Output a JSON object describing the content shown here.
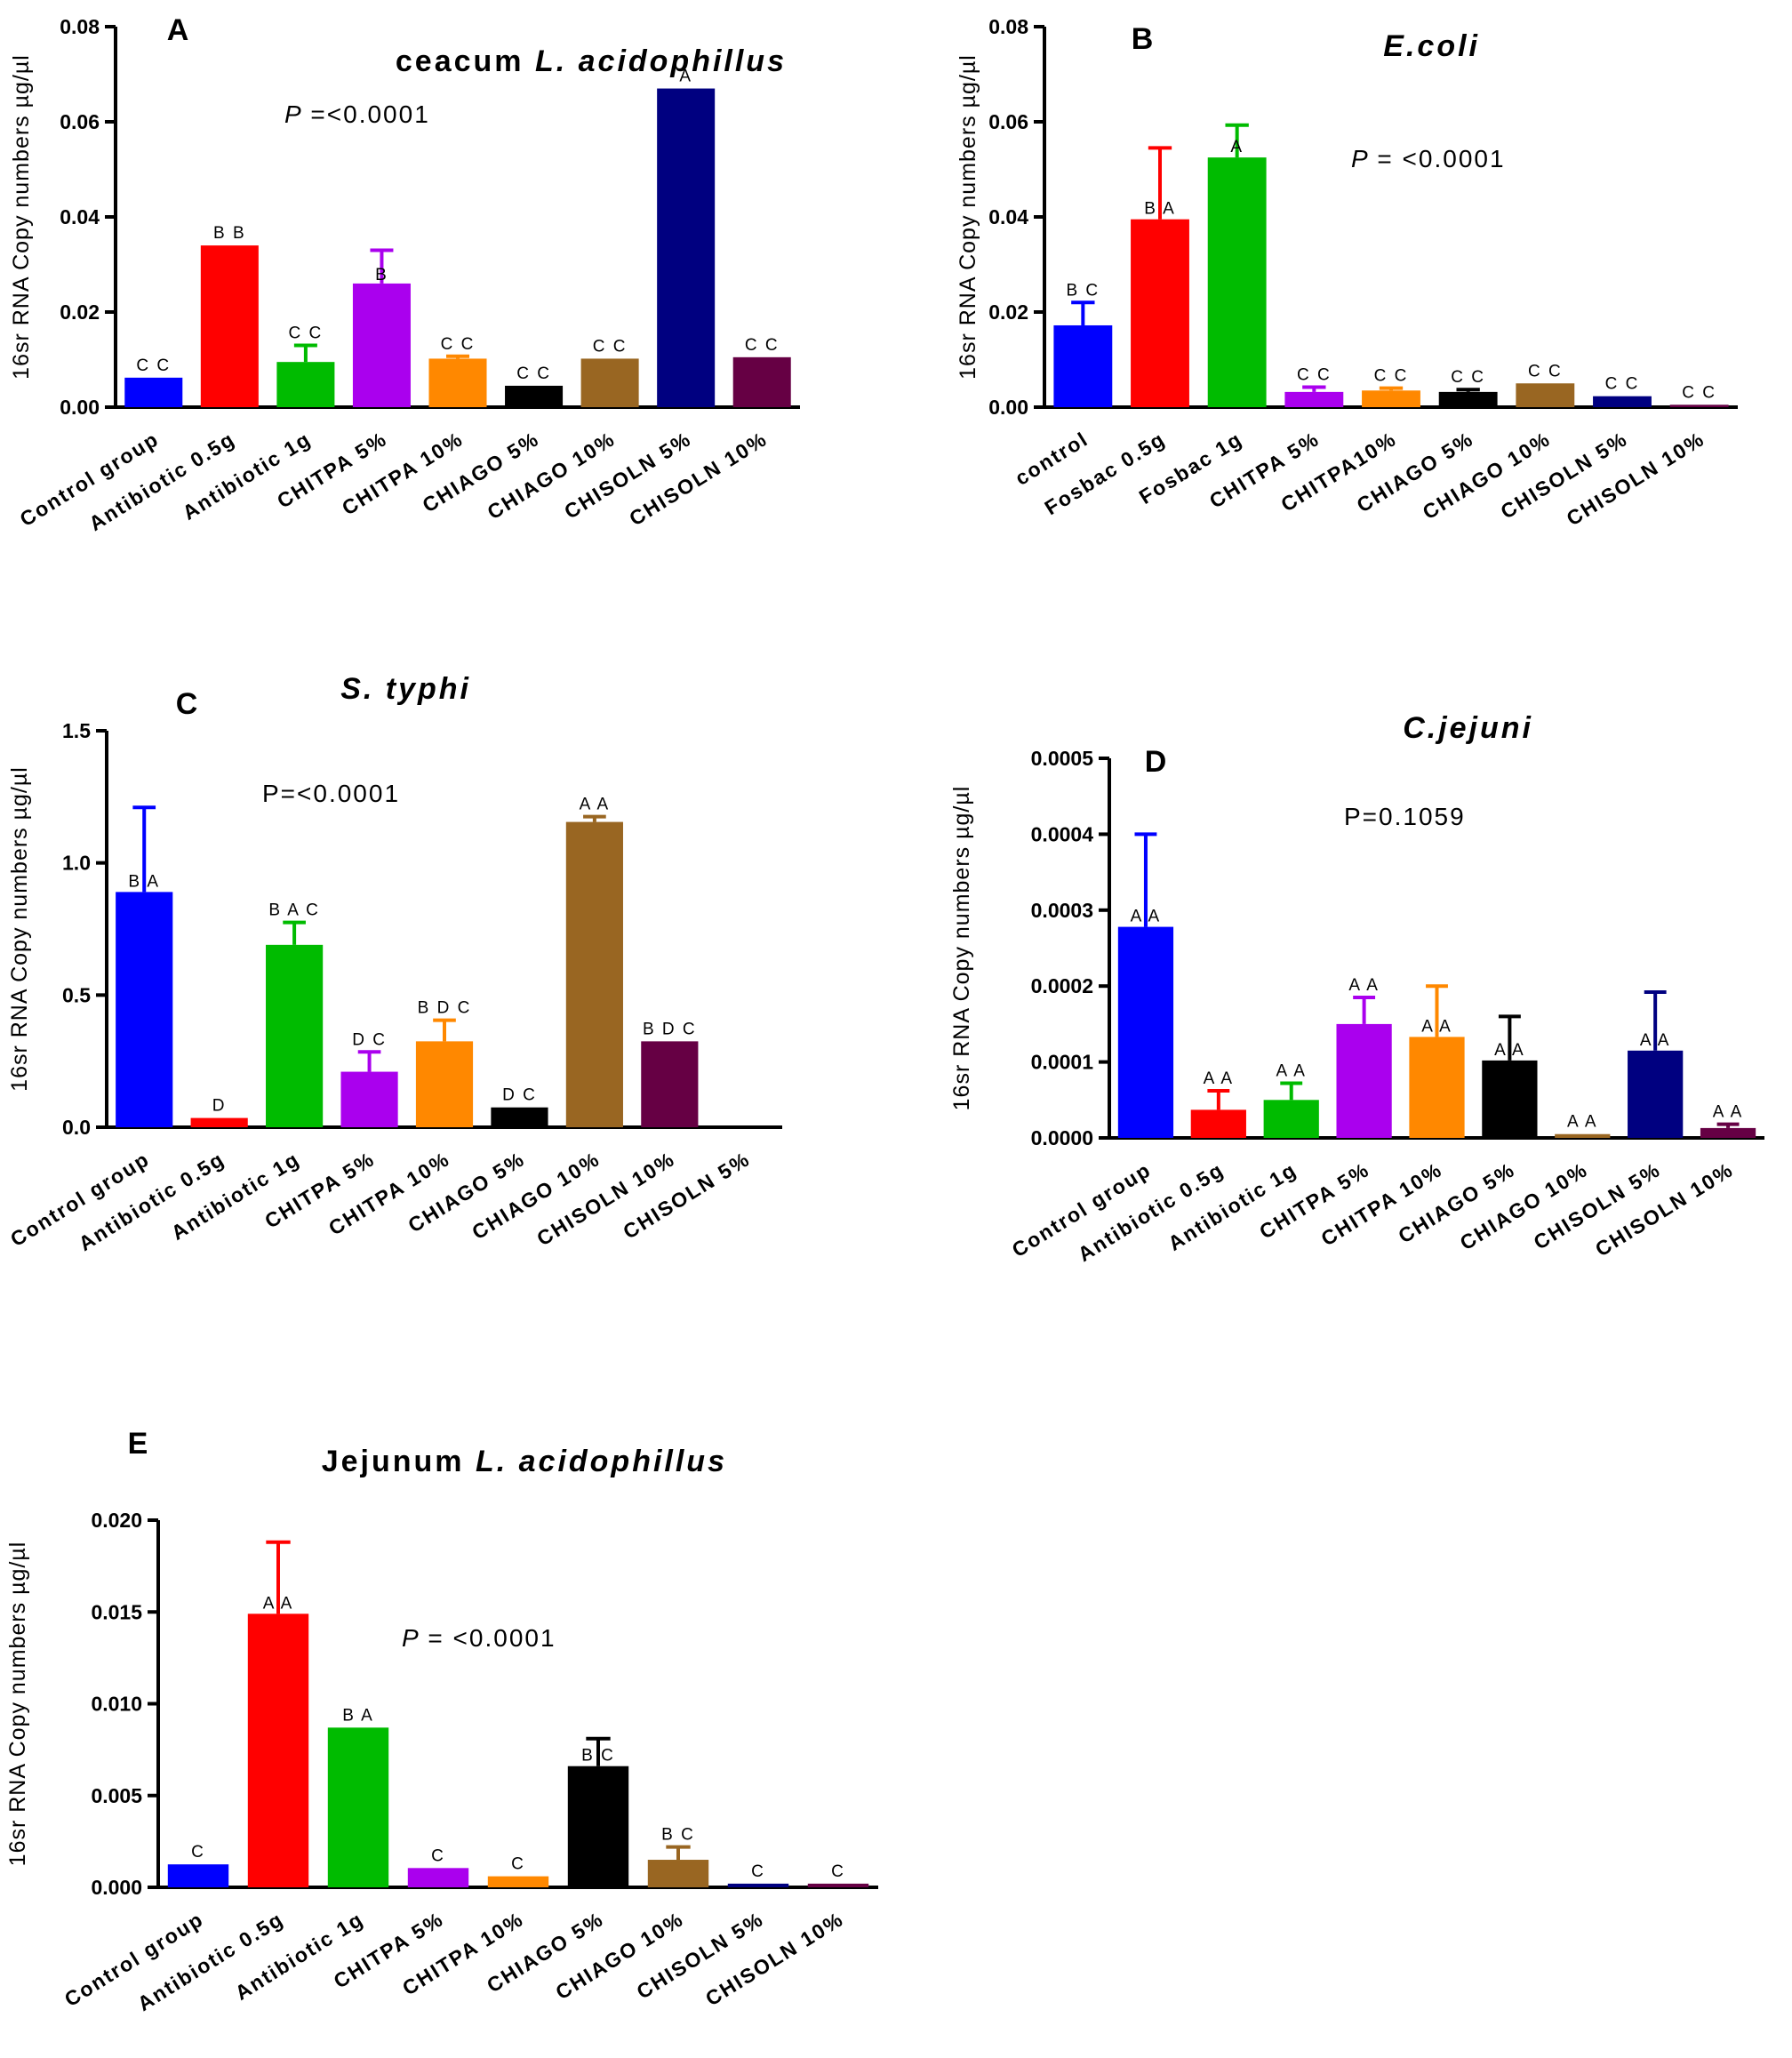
{
  "chart_data": [
    {
      "type": "bar",
      "letter": "A",
      "title": "ceacum",
      "title_italic": "L. acidophillus",
      "p_prefix": "P",
      "p_value": "=<0.0001",
      "ylabel": "16sr RNA Copy numbers µg/µl",
      "ylim": [
        0,
        0.08
      ],
      "yticks": [
        "0.00",
        "0.02",
        "0.04",
        "0.06",
        "0.08"
      ],
      "ytick_values": [
        0,
        0.02,
        0.04,
        0.06,
        0.08
      ],
      "categories": [
        "Control group",
        "Antibiotic 0.5g",
        "Antibiotic 1g",
        "CHITPA 5%",
        "CHITPA 10%",
        "CHIAGO 5%",
        "CHIAGO 10%",
        "CHISOLN 5%",
        "CHISOLN 10%"
      ],
      "values": [
        0.0062,
        0.034,
        0.0095,
        0.026,
        0.0102,
        0.0045,
        0.0102,
        0.067,
        0.0105
      ],
      "errors": [
        0,
        0,
        0.0035,
        0.007,
        0.0005,
        0,
        0,
        0,
        0
      ],
      "colors": [
        "#0000ff",
        "#ff0000",
        "#00bb00",
        "#aa00ee",
        "#ff8800",
        "#000000",
        "#996622",
        "#000080",
        "#660044"
      ],
      "labels": [
        "C C",
        "B B",
        "C C",
        "B",
        "C C",
        "C C",
        "C C",
        "A",
        "C C"
      ]
    },
    {
      "type": "bar",
      "letter": "B",
      "title": "",
      "title_italic": "E.coli",
      "p_prefix": "P",
      "p_value": "= <0.0001",
      "ylabel": "16sr RNA Copy numbers µg/µl",
      "ylim": [
        0,
        0.08
      ],
      "yticks": [
        "0.00",
        "0.02",
        "0.04",
        "0.06",
        "0.08"
      ],
      "ytick_values": [
        0,
        0.02,
        0.04,
        0.06,
        0.08
      ],
      "categories": [
        "control",
        "Fosbac 0.5g",
        "Fosbac 1g",
        "CHITPA 5%",
        "CHITPA10%",
        "CHIAGO 5%",
        "CHIAGO 10%",
        "CHISOLN 5%",
        "CHISOLN 10%"
      ],
      "values": [
        0.0172,
        0.0395,
        0.0525,
        0.0032,
        0.0035,
        0.0032,
        0.005,
        0.0023,
        0.0005
      ],
      "errors": [
        0.0048,
        0.015,
        0.0068,
        0.001,
        0.0005,
        0.0005,
        0,
        0,
        0
      ],
      "colors": [
        "#0000ff",
        "#ff0000",
        "#00bb00",
        "#aa00ee",
        "#ff8800",
        "#000000",
        "#996622",
        "#000080",
        "#660044"
      ],
      "labels": [
        "B C",
        "B A",
        "A",
        "C C",
        "C C",
        "C C",
        "C C",
        "C C",
        "C C"
      ]
    },
    {
      "type": "bar",
      "letter": "C",
      "title": "",
      "title_italic": "S. typhi",
      "p_prefix": "",
      "p_value": "P=<0.0001",
      "ylabel": "16sr RNA Copy numbers µg/µl",
      "ylim": [
        0,
        1.5
      ],
      "yticks": [
        "0.0",
        "0.5",
        "1.0",
        "1.5"
      ],
      "ytick_values": [
        0,
        0.5,
        1.0,
        1.5
      ],
      "categories": [
        "Control group",
        "Antibiotic 0.5g",
        "Antibiotic 1g",
        "CHITPA 5%",
        "CHITPA 10%",
        "CHIAGO 5%",
        "CHIAGO 10%",
        "CHISOLN 10%",
        "CHISOLN 5%"
      ],
      "values": [
        0.89,
        0.035,
        0.69,
        0.21,
        0.325,
        0.075,
        1.155,
        0.325,
        0
      ],
      "errors": [
        0.32,
        0,
        0.085,
        0.075,
        0.08,
        0,
        0.02,
        0,
        0
      ],
      "colors": [
        "#0000ff",
        "#ff0000",
        "#00bb00",
        "#aa00ee",
        "#ff8800",
        "#000000",
        "#996622",
        "#660044",
        "#000080"
      ],
      "labels": [
        "B A",
        "D",
        "B A C",
        "D C",
        "B D C",
        "D C",
        "A A",
        "B D C",
        ""
      ]
    },
    {
      "type": "bar",
      "letter": "D",
      "title": "",
      "title_italic": "C.jejuni",
      "p_prefix": "",
      "p_value": "P=0.1059",
      "ylabel": "16sr RNA Copy numbers µg/µl",
      "ylim": [
        0,
        0.0005
      ],
      "yticks": [
        "0.0000",
        "0.0001",
        "0.0002",
        "0.0003",
        "0.0004",
        "0.0005"
      ],
      "ytick_values": [
        0,
        0.0001,
        0.0002,
        0.0003,
        0.0004,
        0.0005
      ],
      "categories": [
        "Control group",
        "Antibiotic 0.5g",
        "Antibiotic 1g",
        "CHITPA 5%",
        "CHITPA 10%",
        "CHIAGO 5%",
        "CHIAGO 10%",
        "CHISOLN 5%",
        "CHISOLN 10%"
      ],
      "values": [
        0.000278,
        3.7e-05,
        5e-05,
        0.00015,
        0.000133,
        0.000102,
        5e-06,
        0.000115,
        1.3e-05
      ],
      "errors": [
        0.000122,
        2.5e-05,
        2.2e-05,
        3.5e-05,
        6.7e-05,
        5.8e-05,
        0,
        7.7e-05,
        5e-06
      ],
      "colors": [
        "#0000ff",
        "#ff0000",
        "#00bb00",
        "#aa00ee",
        "#ff8800",
        "#000000",
        "#996622",
        "#000080",
        "#660044"
      ],
      "labels": [
        "A A",
        "A A",
        "A A",
        "A A",
        "A A",
        "A A",
        "A A",
        "A A",
        "A A"
      ]
    },
    {
      "type": "bar",
      "letter": "E",
      "title": "Jejunum",
      "title_italic": "L. acidophillus",
      "p_prefix": "P",
      "p_value": "= <0.0001",
      "ylabel": "16sr RNA Copy numbers µg/µl",
      "ylim": [
        0,
        0.02
      ],
      "yticks": [
        "0.000",
        "0.005",
        "0.010",
        "0.015",
        "0.020"
      ],
      "ytick_values": [
        0,
        0.005,
        0.01,
        0.015,
        0.02
      ],
      "categories": [
        "Control group",
        "Antibiotic 0.5g",
        "Antibiotic 1g",
        "CHITPA 5%",
        "CHITPA 10%",
        "CHIAGO 5%",
        "CHIAGO 10%",
        "CHISOLN 5%",
        "CHISOLN 10%"
      ],
      "values": [
        0.00125,
        0.0149,
        0.0087,
        0.00105,
        0.0006,
        0.0066,
        0.0015,
        0.0002,
        0.0002
      ],
      "errors": [
        0,
        0.0039,
        0,
        0,
        0,
        0.0015,
        0.0007,
        0,
        0
      ],
      "colors": [
        "#0000ff",
        "#ff0000",
        "#00bb00",
        "#aa00ee",
        "#ff8800",
        "#000000",
        "#996622",
        "#000080",
        "#660044"
      ],
      "labels": [
        "C",
        "A A",
        "B A",
        "C",
        "C",
        "B C",
        "B C",
        "C",
        "C"
      ]
    }
  ]
}
